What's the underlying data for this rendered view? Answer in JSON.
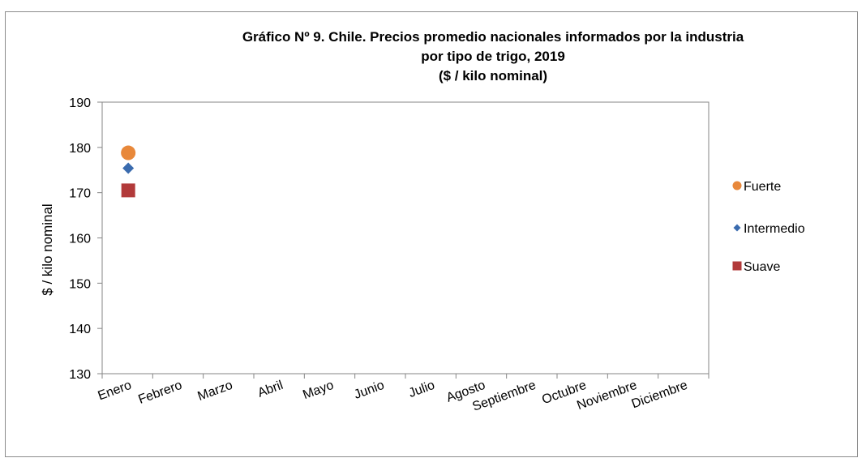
{
  "chart_data": {
    "type": "scatter",
    "title_lines": [
      "Gráfico Nº 9. Chile. Precios promedio nacionales informados por la industria",
      "por tipo de trigo, 2019",
      "($ / kilo nominal)"
    ],
    "ylabel": "$ / kilo nominal",
    "xlabel": "",
    "categories": [
      "Enero",
      "Febrero",
      "Marzo",
      "Abril",
      "Mayo",
      "Junio",
      "Julio",
      "Agosto",
      "Septiembre",
      "Octubre",
      "Noviembre",
      "Diciembre"
    ],
    "ylim": [
      130,
      190
    ],
    "yticks": [
      "130",
      "140",
      "150",
      "160",
      "170",
      "180",
      "190"
    ],
    "grid": false,
    "legend_position": "right",
    "series": [
      {
        "name": "Fuerte",
        "marker": "circle",
        "color": "#E8883A",
        "values": [
          178.8,
          null,
          null,
          null,
          null,
          null,
          null,
          null,
          null,
          null,
          null,
          null
        ]
      },
      {
        "name": "Intermedio",
        "marker": "diamond",
        "color": "#3A6BAE",
        "values": [
          175.4,
          null,
          null,
          null,
          null,
          null,
          null,
          null,
          null,
          null,
          null,
          null
        ]
      },
      {
        "name": "Suave",
        "marker": "square",
        "color": "#B23A3A",
        "values": [
          170.5,
          null,
          null,
          null,
          null,
          null,
          null,
          null,
          null,
          null,
          null,
          null
        ]
      }
    ]
  }
}
